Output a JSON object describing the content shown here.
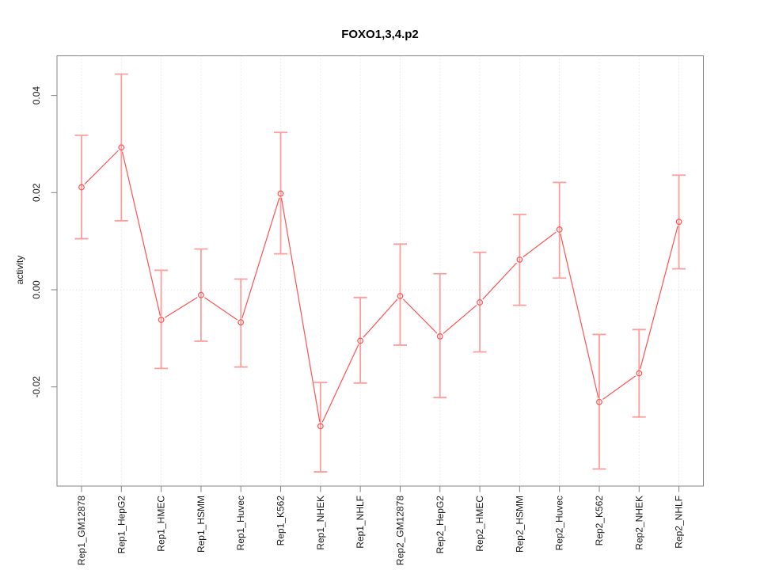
{
  "chart_data": {
    "type": "line",
    "title": "FOXO1,3,4.p2",
    "xlabel": "",
    "ylabel": "activity",
    "legend_position": "none",
    "grid_vertical_dotted_per_category": true,
    "grid_horizontal_dotted_at_zero": true,
    "ylim": [
      -0.04,
      0.048
    ],
    "yticks": {
      "values": [
        0.04,
        0.02,
        0.0,
        -0.02
      ],
      "labels": [
        "0.04",
        "0.02",
        "0.00",
        "-0.02"
      ]
    },
    "categories": [
      "Rep1_GM12878",
      "Rep1_HepG2",
      "Rep1_HMEC",
      "Rep1_HSMM",
      "Rep1_Huvec",
      "Rep1_K562",
      "Rep1_NHEK",
      "Rep1_NHLF",
      "Rep2_GM12878",
      "Rep2_HepG2",
      "Rep2_HMEC",
      "Rep2_HSMM",
      "Rep2_Huvec",
      "Rep2_K562",
      "Rep2_NHEK",
      "Rep2_NHLF"
    ],
    "series": [
      {
        "name": "activity",
        "marker": "open-circle",
        "values": [
          0.0211,
          0.0293,
          -0.0062,
          -0.0011,
          -0.0067,
          0.0198,
          -0.0281,
          -0.0105,
          -0.0013,
          -0.0096,
          -0.0026,
          0.0062,
          0.0124,
          -0.0231,
          -0.0172,
          0.014
        ],
        "error_upper": [
          0.0318,
          0.0444,
          0.004,
          0.0084,
          0.0022,
          0.0324,
          -0.0191,
          -0.0016,
          0.0094,
          0.0033,
          0.0077,
          0.0155,
          0.0221,
          -0.0092,
          -0.0082,
          0.0236
        ],
        "error_lower": [
          0.0105,
          0.0142,
          -0.0162,
          -0.0106,
          -0.0159,
          0.0074,
          -0.0375,
          -0.0192,
          -0.0114,
          -0.0222,
          -0.0128,
          -0.0032,
          0.0024,
          -0.0369,
          -0.0262,
          0.0043
        ]
      }
    ],
    "colors": {
      "line": "#ff5252",
      "error_bar": "#ff9c9c",
      "grid": "#dcdcdc",
      "box": "#848484",
      "text": "#1a1a1a",
      "background": "#ffffff"
    }
  }
}
